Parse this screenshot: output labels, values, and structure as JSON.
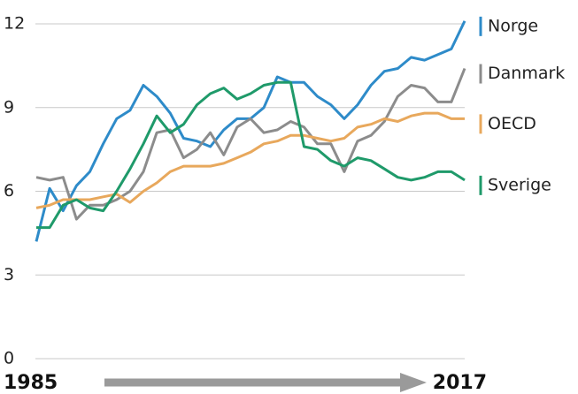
{
  "chart_data": {
    "type": "line",
    "x": [
      1985,
      1986,
      1987,
      1988,
      1989,
      1990,
      1991,
      1992,
      1993,
      1994,
      1995,
      1996,
      1997,
      1998,
      1999,
      2000,
      2001,
      2002,
      2003,
      2004,
      2005,
      2006,
      2007,
      2008,
      2009,
      2010,
      2011,
      2012,
      2013,
      2014,
      2015,
      2016,
      2017
    ],
    "xlim": [
      1985,
      2017
    ],
    "xticks": [
      1985,
      2017
    ],
    "ylim": [
      0,
      12
    ],
    "yticks": [
      0,
      3,
      6,
      9,
      12
    ],
    "grid": true,
    "series": [
      {
        "name": "Norge",
        "color": "#2e8bc9",
        "values": [
          4.2,
          6.1,
          5.3,
          6.2,
          6.7,
          7.7,
          8.6,
          8.9,
          9.8,
          9.4,
          8.8,
          7.9,
          7.8,
          7.6,
          8.2,
          8.6,
          8.6,
          9.0,
          10.1,
          9.9,
          9.9,
          9.4,
          9.1,
          8.6,
          9.1,
          9.8,
          10.3,
          10.4,
          10.8,
          10.7,
          10.9,
          11.1,
          12.1
        ]
      },
      {
        "name": "Danmark",
        "color": "#8c8c8c",
        "values": [
          6.5,
          6.4,
          6.5,
          5.0,
          5.5,
          5.5,
          5.7,
          6.0,
          6.7,
          8.1,
          8.2,
          7.2,
          7.5,
          8.1,
          7.3,
          8.3,
          8.6,
          8.1,
          8.2,
          8.5,
          8.3,
          7.7,
          7.7,
          6.7,
          7.8,
          8.0,
          8.5,
          9.4,
          9.8,
          9.7,
          9.2,
          9.2,
          10.4
        ]
      },
      {
        "name": "OECD",
        "color": "#e8a85c",
        "values": [
          5.4,
          5.5,
          5.7,
          5.7,
          5.7,
          5.8,
          5.9,
          5.6,
          6.0,
          6.3,
          6.7,
          6.9,
          6.9,
          6.9,
          7.0,
          7.2,
          7.4,
          7.7,
          7.8,
          8.0,
          8.0,
          7.9,
          7.8,
          7.9,
          8.3,
          8.4,
          8.6,
          8.5,
          8.7,
          8.8,
          8.8,
          8.6,
          8.6
        ]
      },
      {
        "name": "Sverige",
        "color": "#1f9a6a",
        "values": [
          4.7,
          4.7,
          5.5,
          5.7,
          5.4,
          5.3,
          6.0,
          6.8,
          7.7,
          8.7,
          8.1,
          8.4,
          9.1,
          9.5,
          9.7,
          9.3,
          9.5,
          9.8,
          9.9,
          9.9,
          7.6,
          7.5,
          7.1,
          6.9,
          7.2,
          7.1,
          6.8,
          6.5,
          6.4,
          6.5,
          6.7,
          6.7,
          6.4
        ]
      }
    ]
  }
}
